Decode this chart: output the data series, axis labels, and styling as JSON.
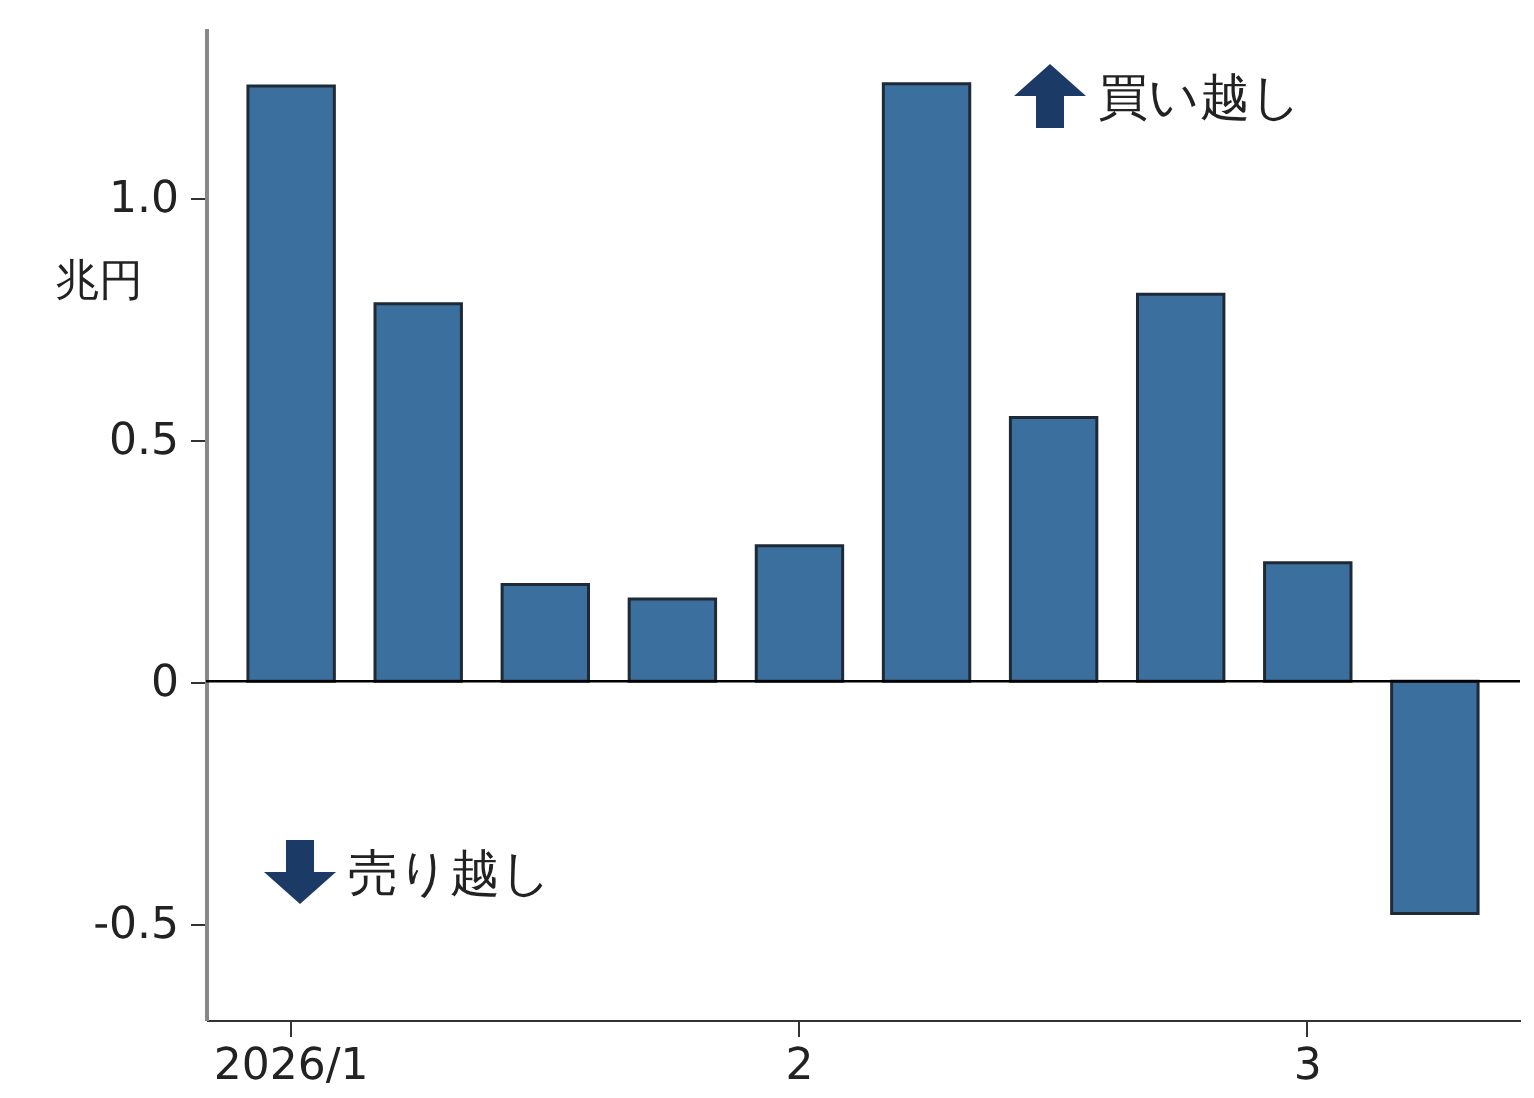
{
  "chart_data": {
    "type": "bar",
    "ylabel": "兆円",
    "categories": [
      "2026/1",
      null,
      null,
      null,
      "2",
      null,
      null,
      null,
      "3",
      null
    ],
    "values": [
      1.23,
      0.78,
      0.2,
      0.17,
      0.28,
      1.235,
      0.545,
      0.8,
      0.245,
      -0.48
    ],
    "color": "#3b6f9d",
    "ylim": [
      -0.7,
      1.35
    ],
    "yticks": [
      -0.5,
      0,
      0.5,
      {
        "value": 1,
        "label": "1.0"
      }
    ],
    "ref_lines": [
      {
        "axis": "y",
        "value": 0,
        "color": "#000000"
      }
    ],
    "annotations": [
      "買い越し",
      "売り越し"
    ],
    "grid": false
  }
}
